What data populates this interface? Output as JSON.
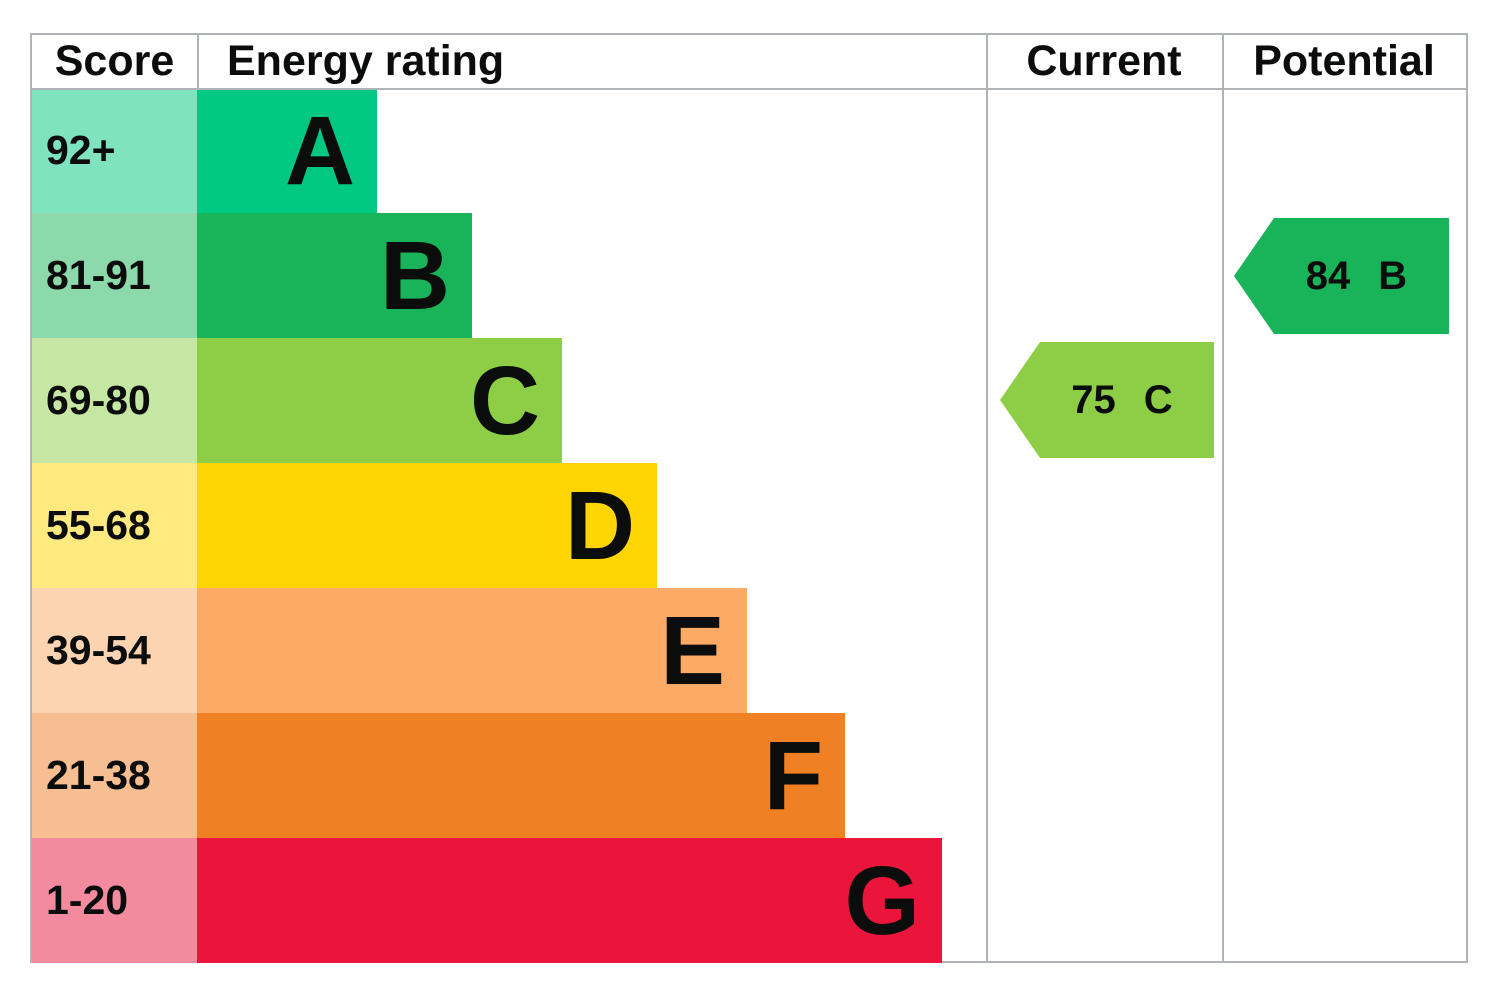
{
  "table": {
    "headers": {
      "score": "Score",
      "rating": "Energy rating",
      "current": "Current",
      "potential": "Potential"
    }
  },
  "bands": [
    {
      "score": "92+",
      "letter": "A",
      "color": "#00c781",
      "tint": "#7fe3c0"
    },
    {
      "score": "81-91",
      "letter": "B",
      "color": "#19b459",
      "tint": "#8cd9ac"
    },
    {
      "score": "69-80",
      "letter": "C",
      "color": "#8dce46",
      "tint": "#c6e7a3"
    },
    {
      "score": "55-68",
      "letter": "D",
      "color": "#ffd500",
      "tint": "#ffea80"
    },
    {
      "score": "39-54",
      "letter": "E",
      "color": "#fcaa65",
      "tint": "#fdd4b2"
    },
    {
      "score": "21-38",
      "letter": "F",
      "color": "#ef8023",
      "tint": "#f7bf91"
    },
    {
      "score": "1-20",
      "letter": "G",
      "color": "#e9153b",
      "tint": "#f48a9d"
    }
  ],
  "markers": {
    "current": {
      "value": "75",
      "band": "C",
      "color": "#8dce46"
    },
    "potential": {
      "value": "84",
      "band": "B",
      "color": "#19b459"
    }
  },
  "colors": {
    "border": "#b1b4b6",
    "text": "#0b0c0c"
  },
  "chart_data": {
    "type": "bar",
    "title": "EPC energy efficiency rating chart",
    "columns": [
      "Score",
      "Energy rating",
      "Current",
      "Potential"
    ],
    "categories": [
      "A",
      "B",
      "C",
      "D",
      "E",
      "F",
      "G"
    ],
    "score_ranges": [
      "92+",
      "81-91",
      "69-80",
      "55-68",
      "39-54",
      "21-38",
      "1-20"
    ],
    "band_colors": [
      "#00c781",
      "#19b459",
      "#8dce46",
      "#ffd500",
      "#fcaa65",
      "#ef8023",
      "#e9153b"
    ],
    "current": {
      "score": 75,
      "band": "C"
    },
    "potential": {
      "score": 84,
      "band": "B"
    },
    "layout": {
      "orientation": "horizontal",
      "bar_lengths": "increasing stepwise from A (shortest) to G (longest)",
      "current_marker_row": "C",
      "potential_marker_row": "B",
      "legend": "none",
      "grid": "column dividers only"
    }
  }
}
